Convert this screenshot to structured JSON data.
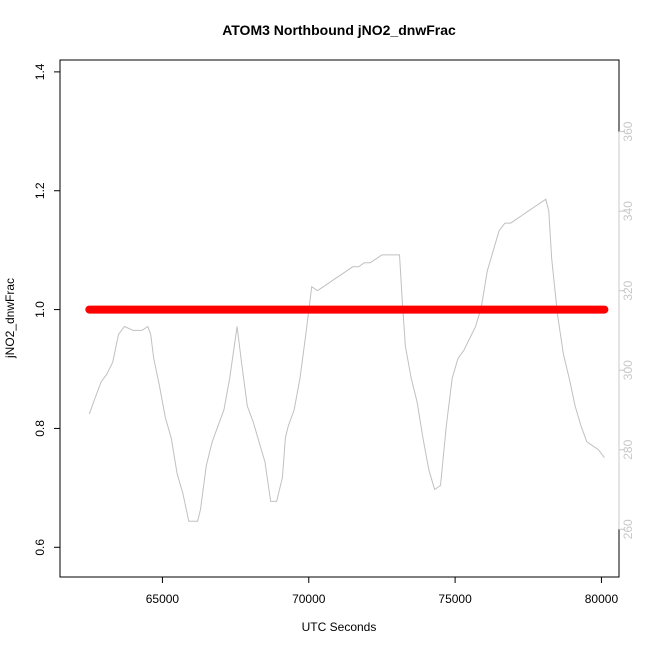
{
  "chart_data": {
    "type": "line",
    "title": "ATOM3 Northbound jNO2_dnwFrac",
    "xlabel": "UTC Seconds",
    "ylabel": "jNO2_dnwFrac",
    "xlim": [
      61500,
      80600
    ],
    "ylim": [
      0.55,
      1.42
    ],
    "y2lim": [
      248,
      378
    ],
    "x_ticks": [
      65000,
      70000,
      75000,
      80000
    ],
    "x_tick_labels": [
      "65000",
      "70000",
      "75000",
      "80000"
    ],
    "y_ticks": [
      0.6,
      0.8,
      1.0,
      1.2,
      1.4
    ],
    "y_tick_labels": [
      "0.6",
      "0.8",
      "1.0",
      "1.2",
      "1.4"
    ],
    "y2_ticks": [
      260,
      280,
      300,
      320,
      340,
      360
    ],
    "y2_tick_labels": [
      "260",
      "280",
      "300",
      "320",
      "340",
      "360"
    ],
    "grid": false,
    "colors": {
      "primary": "#ff0000",
      "secondary": "#c0c0c0",
      "axis": "#000000",
      "axis_right": "#c8c8c8"
    },
    "series": [
      {
        "axis": "left",
        "color": "#ff0000",
        "x": [
          62500,
          80100
        ],
        "values": [
          1.0,
          1.0
        ]
      },
      {
        "axis": "right",
        "color": "#c0c0c0",
        "x": [
          62500,
          62700,
          62900,
          63100,
          63300,
          63500,
          63700,
          64000,
          64300,
          64500,
          64600,
          64700,
          64900,
          65100,
          65300,
          65500,
          65700,
          65900,
          66200,
          66300,
          66500,
          66700,
          66900,
          67100,
          67300,
          67550,
          67700,
          67900,
          68100,
          68300,
          68500,
          68700,
          68900,
          69100,
          69200,
          69300,
          69500,
          69700,
          69900,
          70100,
          70300,
          70500,
          70700,
          70900,
          71100,
          71300,
          71500,
          71700,
          71900,
          72100,
          72300,
          72500,
          72700,
          72900,
          73100,
          73200,
          73300,
          73500,
          73700,
          73900,
          74100,
          74300,
          74500,
          74700,
          74900,
          75100,
          75300,
          75500,
          75700,
          75900,
          76100,
          76300,
          76500,
          76700,
          76900,
          77100,
          77300,
          77500,
          77700,
          77900,
          78100,
          78200,
          78300,
          78500,
          78700,
          78900,
          79100,
          79300,
          79500,
          79700,
          79900,
          80100
        ],
        "values": [
          289,
          293,
          297,
          299,
          302,
          309,
          311,
          310,
          310,
          311,
          309,
          303,
          296,
          288,
          283,
          274,
          269,
          262,
          262,
          265,
          276,
          282,
          286,
          290,
          298,
          311,
          302,
          291,
          287,
          282,
          277,
          267,
          267,
          273,
          283,
          286,
          290,
          298,
          309,
          321,
          320,
          321,
          322,
          323,
          324,
          325,
          326,
          326,
          327,
          327,
          328,
          329,
          329,
          329,
          329,
          317,
          306,
          298,
          292,
          283,
          275,
          270,
          271,
          286,
          298,
          303,
          305,
          308,
          311,
          316,
          325,
          330,
          335,
          337,
          337,
          338,
          339,
          340,
          341,
          342,
          343,
          340,
          328,
          314,
          304,
          298,
          291,
          286,
          282,
          281,
          280,
          278
        ]
      }
    ]
  }
}
